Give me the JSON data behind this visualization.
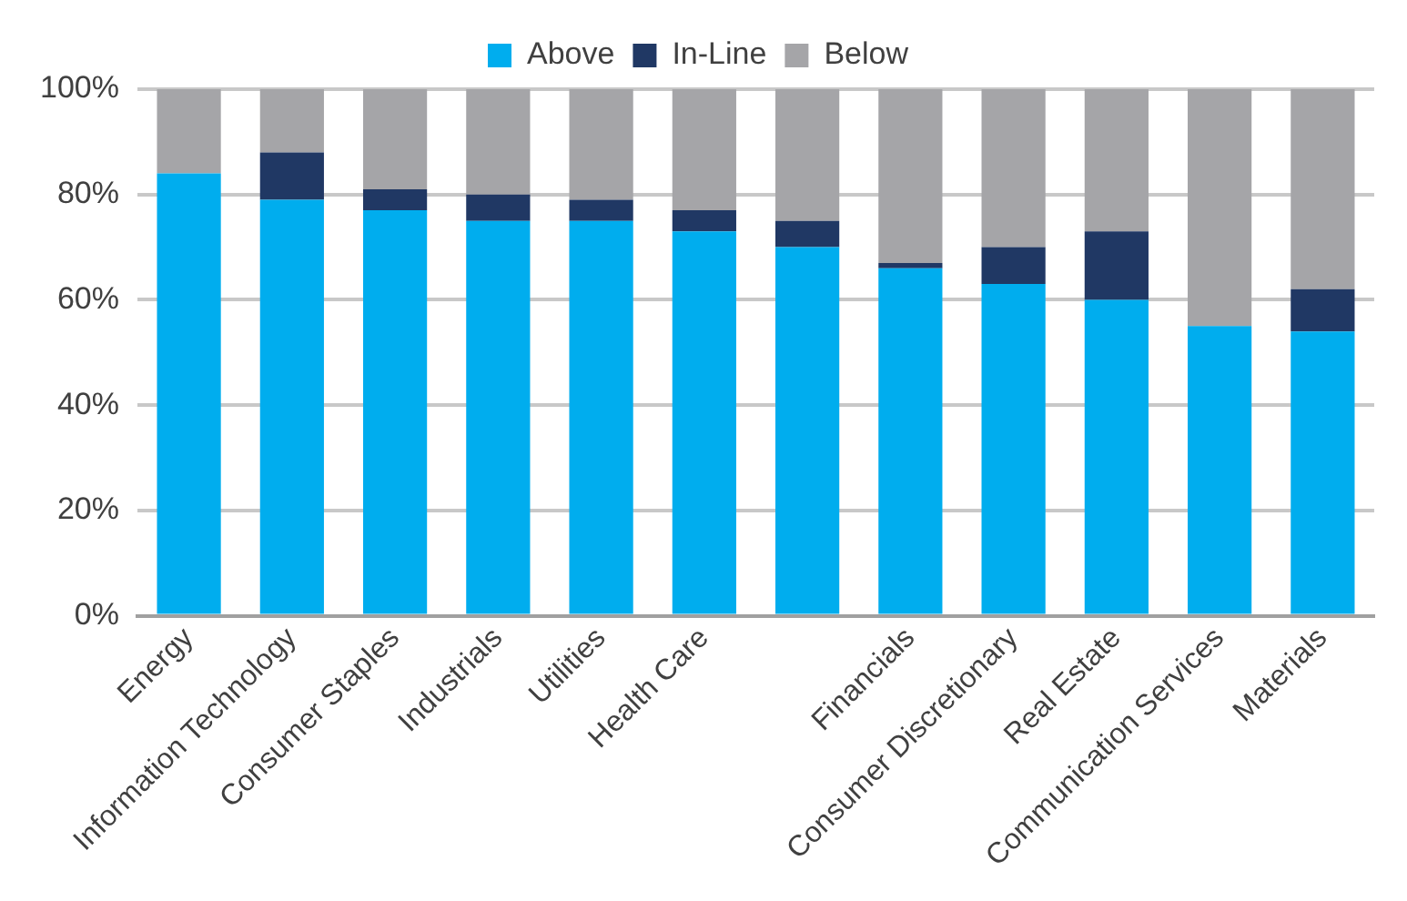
{
  "chart_data": {
    "type": "bar",
    "stacked": true,
    "categories": [
      "Energy",
      "Information Technology",
      "Consumer Staples",
      "Industrials",
      "Utilities",
      "Health Care",
      null,
      "Financials",
      "Consumer Discretionary",
      "Real Estate",
      "Communication Services",
      "Materials"
    ],
    "series": [
      {
        "name": "Above",
        "color": "#00adee",
        "values": [
          84,
          79,
          77,
          75,
          75,
          73,
          70,
          66,
          63,
          60,
          55,
          54
        ]
      },
      {
        "name": "In-Line",
        "color": "#203864",
        "values": [
          0,
          9,
          4,
          5,
          4,
          4,
          5,
          1,
          7,
          13,
          0,
          8
        ]
      },
      {
        "name": "Below",
        "color": "#a5a5a8",
        "values": [
          16,
          12,
          19,
          20,
          21,
          23,
          25,
          33,
          30,
          27,
          45,
          38
        ]
      }
    ],
    "ylim": [
      0,
      100
    ],
    "yticks": [
      {
        "value": 0,
        "label": "0%"
      },
      {
        "value": 20,
        "label": "20%"
      },
      {
        "value": 40,
        "label": "40%"
      },
      {
        "value": 60,
        "label": "60%"
      },
      {
        "value": 80,
        "label": "80%"
      },
      {
        "value": 100,
        "label": "100%"
      }
    ],
    "grid": "y",
    "legend": "top"
  }
}
